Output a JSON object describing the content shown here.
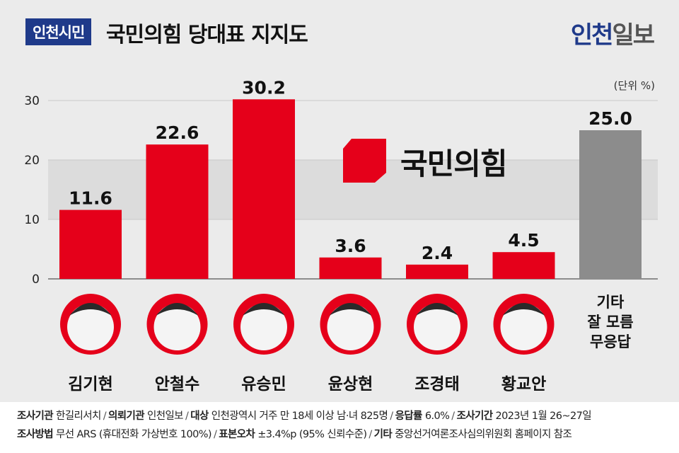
{
  "header": {
    "badge": "인천시민",
    "title": "국민의힘 당대표 지지도",
    "brand_part1": "인천",
    "brand_part2": "일보"
  },
  "chart_data": {
    "type": "bar",
    "categories": [
      "김기현",
      "안철수",
      "유승민",
      "윤상현",
      "조경태",
      "황교안",
      "기타 잘 모름 무응답"
    ],
    "other_label_lines": [
      "기타",
      "잘 모름",
      "무응답"
    ],
    "values": [
      11.6,
      22.6,
      30.2,
      3.6,
      2.4,
      4.5,
      25.0
    ],
    "value_labels": [
      "11.6",
      "22.6",
      "30.2",
      "3.6",
      "2.4",
      "4.5",
      "25.0"
    ],
    "unit_label": "(단위 %)",
    "ylim": [
      0,
      30
    ],
    "yticks": [
      0,
      10,
      20,
      30
    ],
    "colors": {
      "candidate": "#e5001a",
      "other": "#8c8c8c"
    },
    "party_logo_text": "국민의힘"
  },
  "colors": {
    "badge": "#1f3a8a",
    "bar_red": "#e5001a",
    "bar_gray": "#8c8c8c",
    "band": "#dcdcdc"
  },
  "footer": {
    "line1": [
      {
        "label": "조사기관",
        "value": "한길리서치"
      },
      {
        "label": "의뢰기관",
        "value": "인천일보"
      },
      {
        "label": "대상",
        "value": "인천광역시 거주 만 18세 이상 남·녀 825명"
      },
      {
        "label": "응답률",
        "value": "6.0%"
      },
      {
        "label": "조사기간",
        "value": "2023년 1월 26~27일"
      }
    ],
    "line2": [
      {
        "label": "조사방법",
        "value": "무선 ARS (휴대전화 가상번호 100%)"
      },
      {
        "label": "표본오차",
        "value": "±3.4%p (95% 신뢰수준)"
      },
      {
        "label": "기타",
        "value": "중앙선거여론조사심의위원회 홈페이지 참조"
      }
    ]
  }
}
